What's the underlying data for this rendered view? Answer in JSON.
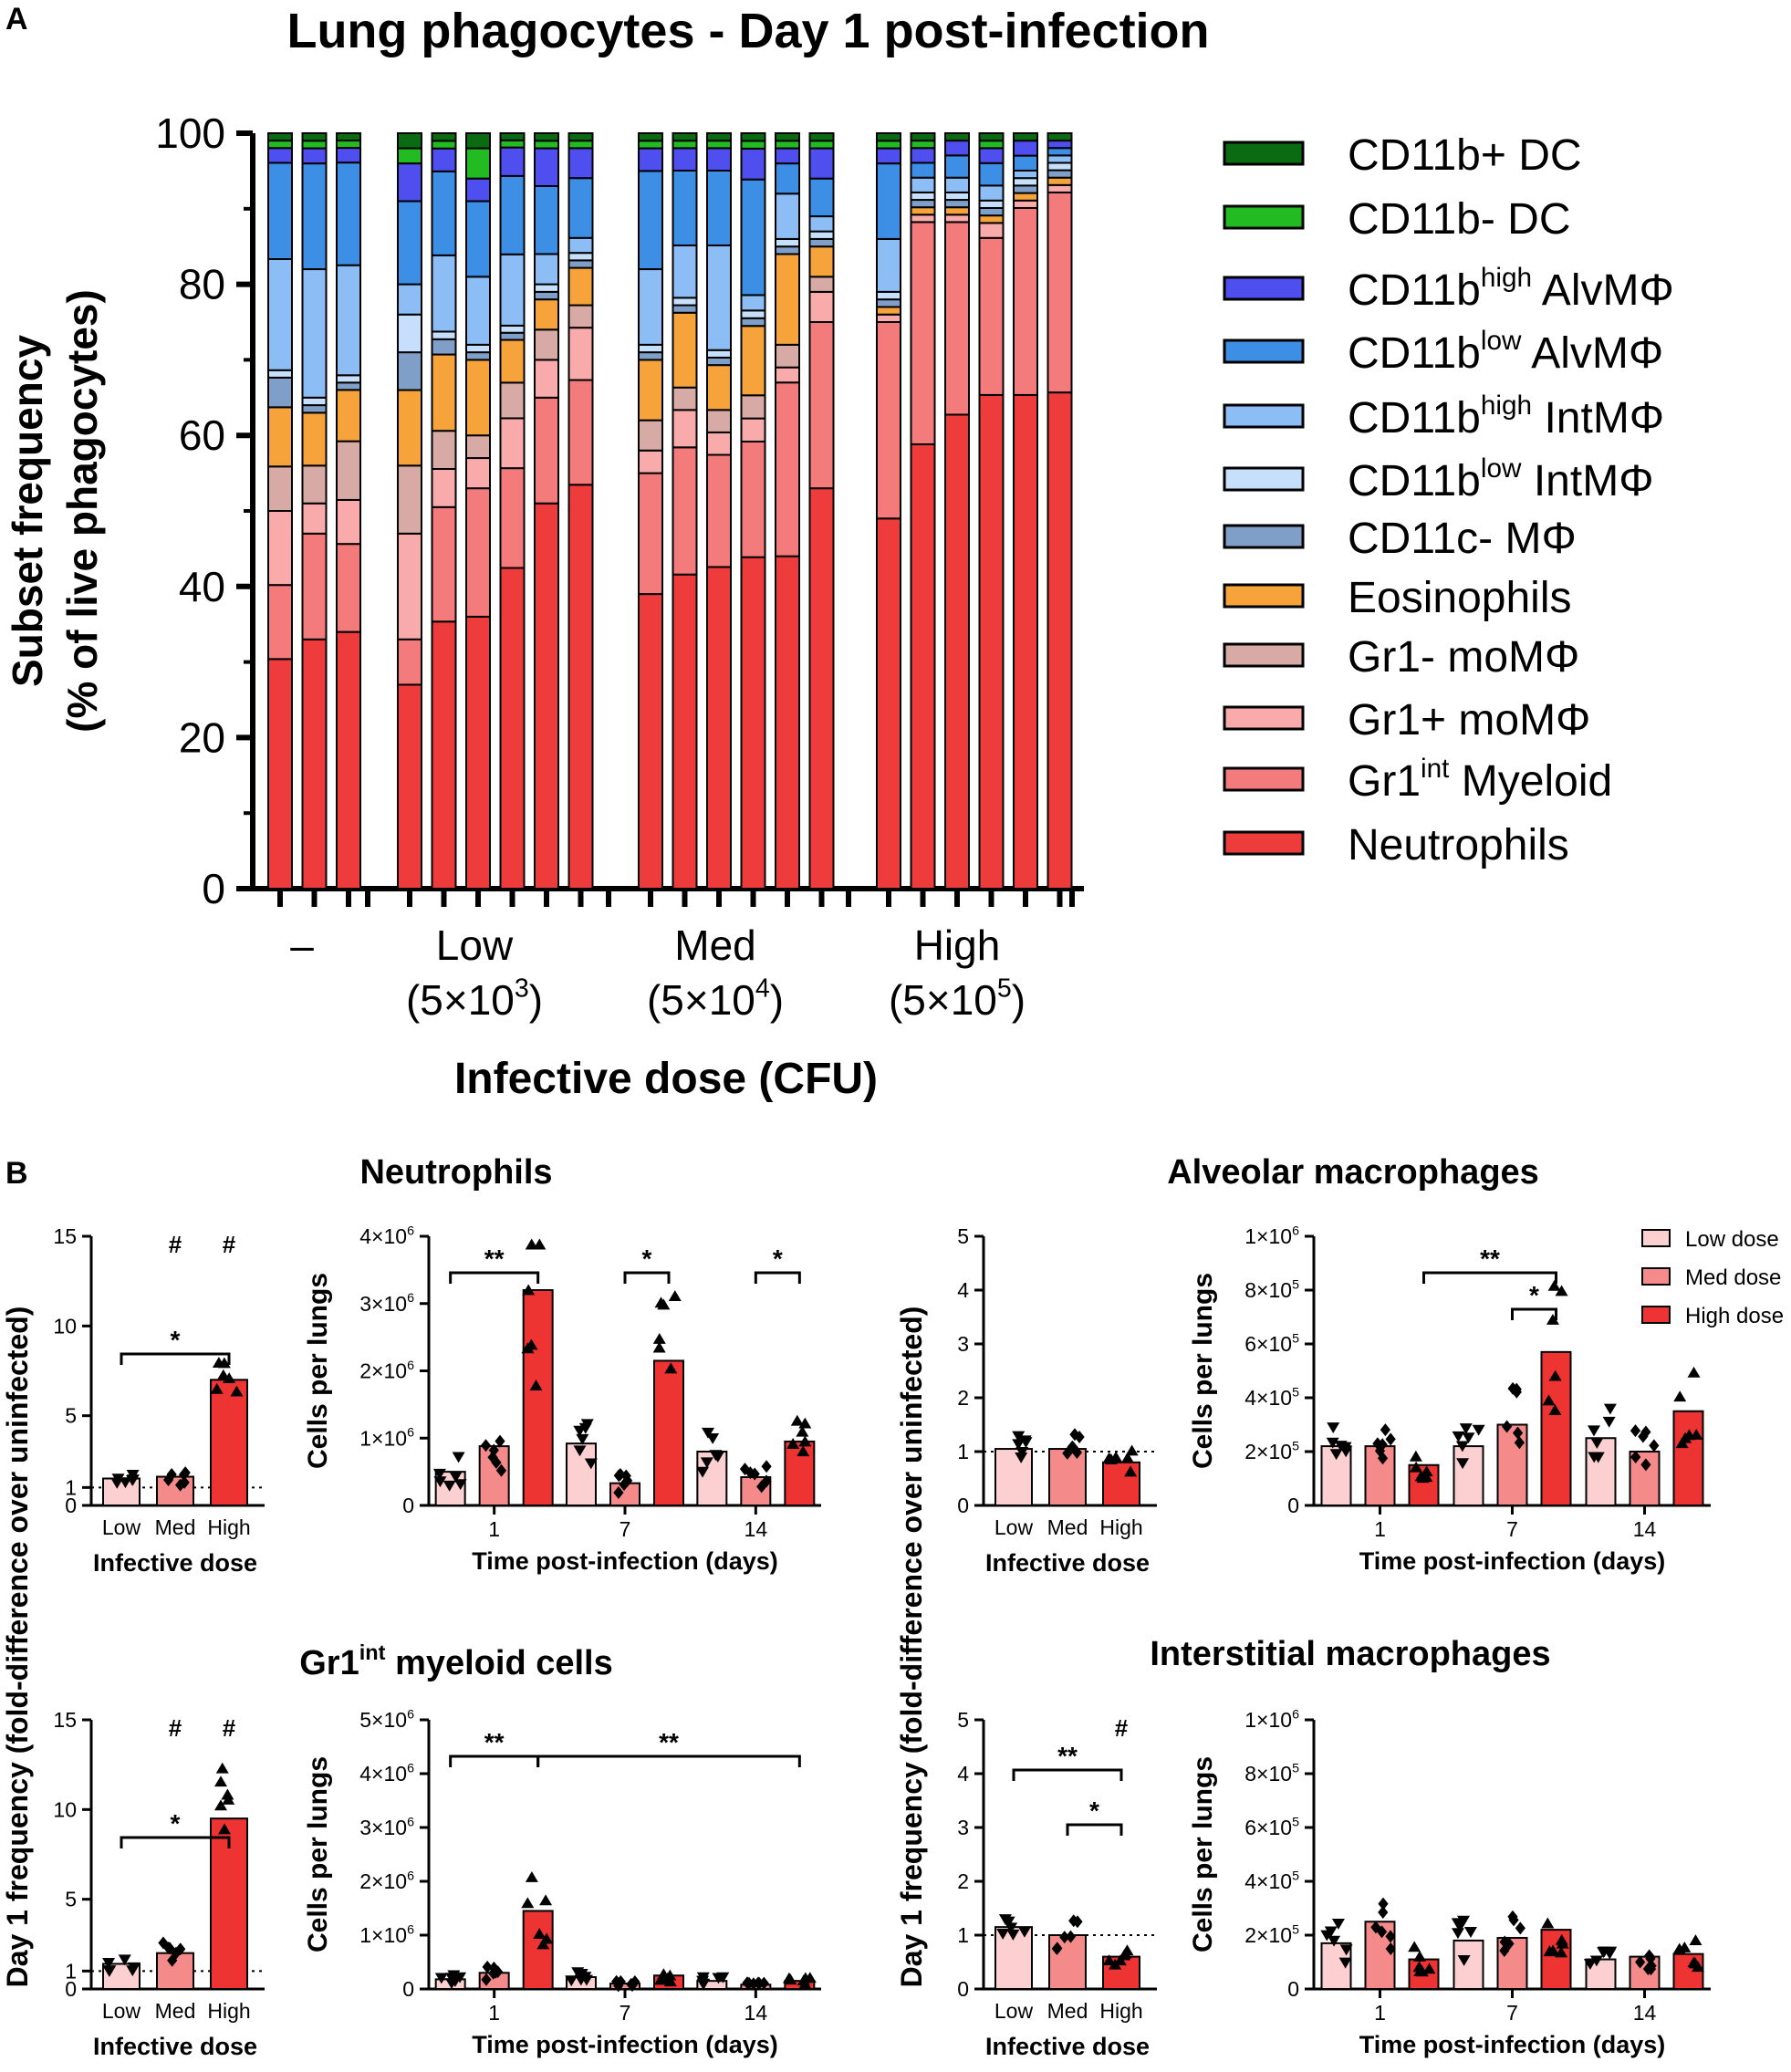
{
  "panel_labels": {
    "a": "A",
    "b": "B"
  },
  "chart_data": [
    {
      "id": "A",
      "type": "stacked-bar",
      "title": "Lung phagocytes - Day 1 post-infection",
      "ylabel_line1": "Subset frequency",
      "ylabel_line2": "(% of live phagocytes)",
      "xlabel": "Infective dose (CFU)",
      "ylim": [
        0,
        100
      ],
      "yticks": [
        "0",
        "20",
        "40",
        "60",
        "80",
        "100"
      ],
      "groups": [
        {
          "label": "–",
          "sub": "",
          "exp": "",
          "tail": "",
          "bars": 3
        },
        {
          "label": "Low",
          "sub": "(5×10",
          "exp": "3",
          "tail": ")",
          "bars": 6
        },
        {
          "label": "Med",
          "sub": "(5×10",
          "exp": "4",
          "tail": ")",
          "bars": 6
        },
        {
          "label": "High",
          "sub": "(5×10",
          "exp": "5",
          "tail": ")",
          "bars": 6
        }
      ],
      "legend": [
        {
          "base": "CD11b+ DC",
          "sup": "",
          "rest": "",
          "color": "#0b6b12"
        },
        {
          "base": "CD11b- DC",
          "sup": "",
          "rest": "",
          "color": "#22bb22"
        },
        {
          "base": "CD11b",
          "sup": "high",
          "rest": " AlvMΦ",
          "color": "#4f4ff0"
        },
        {
          "base": "CD11b",
          "sup": "low",
          "rest": " AlvMΦ",
          "color": "#3d8fe6"
        },
        {
          "base": "CD11b",
          "sup": "high",
          "rest": " IntMΦ",
          "color": "#8cbdf5"
        },
        {
          "base": "CD11b",
          "sup": "low",
          "rest": " IntMΦ",
          "color": "#c6dffb"
        },
        {
          "base": "CD11c- MΦ",
          "sup": "",
          "rest": "",
          "color": "#7f9fc8"
        },
        {
          "base": "Eosinophils",
          "sup": "",
          "rest": "",
          "color": "#f6a33b"
        },
        {
          "base": "Gr1- moMΦ",
          "sup": "",
          "rest": "",
          "color": "#d8aaa6"
        },
        {
          "base": "Gr1+ moMΦ",
          "sup": "",
          "rest": "",
          "color": "#f9aaaa"
        },
        {
          "base": "Gr1",
          "sup": "int",
          "rest": " Myeloid",
          "color": "#f47b7b"
        },
        {
          "base": "Neutrophils",
          "sup": "",
          "rest": "",
          "color": "#ee3b3b"
        }
      ],
      "bars": [
        [
          31,
          10,
          10,
          6,
          8,
          4,
          1,
          15,
          13,
          2,
          1,
          1
        ],
        [
          33,
          14,
          4,
          5,
          7,
          1,
          1,
          17,
          14,
          2,
          1,
          1
        ],
        [
          35,
          12,
          6,
          8,
          7,
          1,
          1,
          15,
          14,
          2,
          1,
          1
        ],
        [
          27,
          6,
          14,
          9,
          10,
          5,
          5,
          4,
          11,
          5,
          2,
          2
        ],
        [
          35,
          15,
          5,
          5,
          10,
          2,
          1,
          10,
          11,
          3,
          1,
          1
        ],
        [
          36,
          17,
          4,
          3,
          10,
          1,
          1,
          9,
          10,
          3,
          4,
          2
        ],
        [
          45,
          14,
          7,
          5,
          6,
          1,
          1,
          10,
          11,
          4,
          1,
          1
        ],
        [
          51,
          14,
          5,
          4,
          4,
          1,
          1,
          4,
          9,
          5,
          1,
          1
        ],
        [
          54,
          14,
          7,
          3,
          5,
          1,
          1,
          2,
          8,
          4,
          1,
          1
        ],
        [
          39,
          16,
          3,
          4,
          8,
          1,
          1,
          10,
          13,
          3,
          1,
          1
        ],
        [
          42,
          17,
          5,
          3,
          10,
          1,
          1,
          7,
          10,
          3,
          1,
          1
        ],
        [
          43,
          15,
          3,
          3,
          6,
          1,
          1,
          14,
          10,
          3,
          1,
          1
        ],
        [
          43,
          15,
          3,
          3,
          9,
          1,
          1,
          2,
          15,
          4,
          1,
          1
        ],
        [
          44,
          23,
          2,
          3,
          12,
          1,
          1,
          6,
          4,
          2,
          1,
          1
        ],
        [
          53,
          22,
          4,
          2,
          4,
          1,
          1,
          2,
          5,
          4,
          1,
          1
        ],
        [
          49,
          26,
          1,
          0,
          1,
          1,
          1,
          7,
          10,
          2,
          1,
          1
        ],
        [
          60,
          30,
          1,
          0,
          1,
          1,
          1,
          2,
          2,
          2,
          1,
          1
        ],
        [
          64,
          26,
          1,
          0,
          1,
          1,
          1,
          2,
          3,
          2,
          0,
          1
        ],
        [
          66,
          21,
          2,
          0,
          1,
          1,
          1,
          2,
          3,
          2,
          1,
          1
        ],
        [
          66,
          25,
          1,
          0,
          1,
          1,
          1,
          1,
          2,
          2,
          0,
          1
        ],
        [
          67,
          27,
          1,
          0,
          1,
          1,
          1,
          1,
          1,
          1,
          0,
          1
        ]
      ]
    },
    {
      "id": "B",
      "section_titles": {
        "neut": {
          "text": "Neutrophils",
          "sup": "",
          "rest": ""
        },
        "alv": {
          "text": "Alveolar macrophages",
          "sup": "",
          "rest": ""
        },
        "gr1": {
          "text": "Gr1",
          "sup": "int",
          "rest": " myeloid cells"
        },
        "int": {
          "text": "Interstitial macrophages",
          "sup": "",
          "rest": ""
        }
      },
      "fold_ylabel": "Day 1 frequency (fold-difference over uninfected)",
      "cells_ylabel": "Cells per lungs",
      "fold_xlabel": "Infective dose",
      "time_xlabel": "Time post-infection (days)",
      "dose_categories": [
        "Low",
        "Med",
        "High"
      ],
      "time_points": [
        "1",
        "7",
        "14"
      ],
      "colors": {
        "low": "#fcd0d0",
        "med": "#f58a8a",
        "high": "#ee3333"
      },
      "legend": [
        "Low dose",
        "Med dose",
        "High dose"
      ],
      "panels": [
        {
          "name": "neut-fold",
          "kind": "fold",
          "ylim": [
            0,
            15
          ],
          "yticks": [
            "0",
            "1",
            "5",
            "10",
            "15"
          ],
          "values": [
            1.5,
            1.6,
            7.0
          ],
          "sig": [
            {
              "from": 0,
              "to": 2,
              "label": "*",
              "level": 1
            }
          ],
          "hash": [
            1,
            2
          ]
        },
        {
          "name": "neut-cells",
          "kind": "cells",
          "ylim": [
            0,
            4
          ],
          "unit": "1×10^6",
          "yticks": [
            {
              "m": "",
              "e": "",
              "plain": "0"
            },
            {
              "m": "1×10",
              "e": "6"
            },
            {
              "m": "2×10",
              "e": "6"
            },
            {
              "m": "3×10",
              "e": "6"
            },
            {
              "m": "4×10",
              "e": "6"
            }
          ],
          "values": [
            [
              0.5,
              0.88,
              3.2
            ],
            [
              0.92,
              0.33,
              2.15
            ],
            [
              0.8,
              0.42,
              0.95
            ]
          ],
          "sig": [
            {
              "from": [
                0,
                0
              ],
              "to": [
                0,
                2
              ],
              "label": "**"
            },
            {
              "from": [
                1,
                1
              ],
              "to": [
                1,
                2
              ],
              "label": "*"
            },
            {
              "from": [
                2,
                1
              ],
              "to": [
                2,
                2
              ],
              "label": "*"
            }
          ]
        },
        {
          "name": "alv-fold",
          "kind": "fold",
          "ylim": [
            0,
            5
          ],
          "yticks": [
            "0",
            "1",
            "2",
            "3",
            "4",
            "5"
          ],
          "values": [
            1.05,
            1.05,
            0.8
          ],
          "sig": [],
          "hash": []
        },
        {
          "name": "alv-cells",
          "kind": "cells",
          "ylim": [
            0,
            10
          ],
          "yticks": [
            {
              "plain": "0"
            },
            {
              "m": "2×10",
              "e": "5"
            },
            {
              "m": "4×10",
              "e": "5"
            },
            {
              "m": "6×10",
              "e": "5"
            },
            {
              "m": "8×10",
              "e": "5"
            },
            {
              "m": "1×10",
              "e": "6"
            }
          ],
          "values": [
            [
              2.2,
              2.2,
              1.5
            ],
            [
              2.2,
              3.0,
              5.7
            ],
            [
              2.5,
              2.0,
              3.5
            ]
          ],
          "sig": [
            {
              "from": [
                0,
                2
              ],
              "to": [
                1,
                2
              ],
              "label": "**",
              "level": 2
            },
            {
              "from": [
                1,
                1
              ],
              "to": [
                1,
                2
              ],
              "label": "*",
              "level": 1
            }
          ]
        },
        {
          "name": "gr1-fold",
          "kind": "fold",
          "ylim": [
            0,
            15
          ],
          "yticks": [
            "0",
            "1",
            "5",
            "10",
            "15"
          ],
          "values": [
            1.4,
            2.0,
            9.5
          ],
          "sig": [
            {
              "from": 0,
              "to": 2,
              "label": "*",
              "level": 1
            }
          ],
          "hash": [
            1,
            2
          ]
        },
        {
          "name": "gr1-cells",
          "kind": "cells",
          "ylim": [
            0,
            5
          ],
          "yticks": [
            {
              "plain": "0"
            },
            {
              "m": "1×10",
              "e": "6"
            },
            {
              "m": "2×10",
              "e": "6"
            },
            {
              "m": "3×10",
              "e": "6"
            },
            {
              "m": "4×10",
              "e": "6"
            },
            {
              "m": "5×10",
              "e": "6"
            }
          ],
          "values": [
            [
              0.18,
              0.3,
              1.45
            ],
            [
              0.22,
              0.1,
              0.25
            ],
            [
              0.15,
              0.08,
              0.15
            ]
          ],
          "sig": [
            {
              "from": [
                0,
                0
              ],
              "to": [
                0,
                2
              ],
              "label": "**"
            },
            {
              "from": [
                0,
                2
              ],
              "to": [
                2,
                2
              ],
              "label": "**"
            }
          ]
        },
        {
          "name": "int-fold",
          "kind": "fold",
          "ylim": [
            0,
            5
          ],
          "yticks": [
            "0",
            "1",
            "2",
            "3",
            "4",
            "5"
          ],
          "values": [
            1.15,
            1.0,
            0.6
          ],
          "sig": [
            {
              "from": 0,
              "to": 2,
              "label": "**",
              "level": 2
            },
            {
              "from": 1,
              "to": 2,
              "label": "*",
              "level": 1
            }
          ],
          "hash": [
            2
          ]
        },
        {
          "name": "int-cells",
          "kind": "cells",
          "ylim": [
            0,
            10
          ],
          "yticks": [
            {
              "plain": "0"
            },
            {
              "m": "2×10",
              "e": "5"
            },
            {
              "m": "4×10",
              "e": "5"
            },
            {
              "m": "6×10",
              "e": "5"
            },
            {
              "m": "8×10",
              "e": "5"
            },
            {
              "m": "1×10",
              "e": "6"
            }
          ],
          "values": [
            [
              1.7,
              2.5,
              1.1
            ],
            [
              1.8,
              1.9,
              2.2
            ],
            [
              1.1,
              1.2,
              1.3
            ]
          ],
          "sig": []
        }
      ]
    }
  ]
}
